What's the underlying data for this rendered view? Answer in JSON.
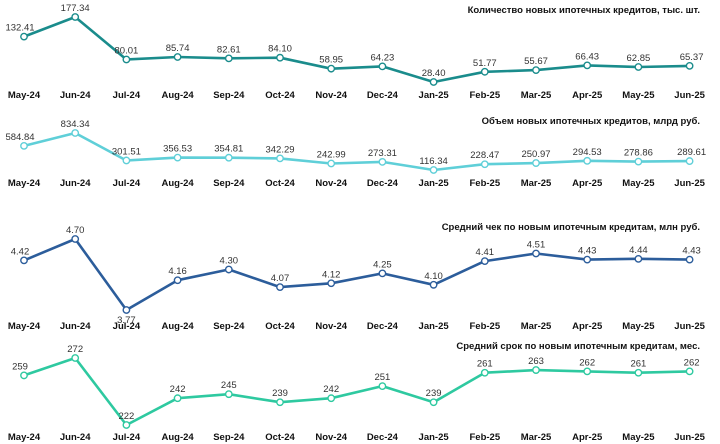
{
  "chart_data": [
    {
      "type": "line",
      "title": "Количество новых ипотечных кредитов, тыс. шт.",
      "categories": [
        "May-24",
        "Jun-24",
        "Jul-24",
        "Aug-24",
        "Sep-24",
        "Oct-24",
        "Nov-24",
        "Dec-24",
        "Jan-25",
        "Feb-25",
        "Mar-25",
        "Apr-25",
        "May-25",
        "Jun-25"
      ],
      "values": [
        132.41,
        177.34,
        80.01,
        85.74,
        82.61,
        84.1,
        58.95,
        64.23,
        28.4,
        51.77,
        55.67,
        66.43,
        62.85,
        65.37
      ],
      "labels": [
        "132.41",
        "177.34",
        "80.01",
        "85.74",
        "82.61",
        "84.10",
        "58.95",
        "64.23",
        "28.40",
        "51.77",
        "55.67",
        "66.43",
        "62.85",
        "65.37"
      ],
      "color": "#1a8c8c"
    },
    {
      "type": "line",
      "title": "Объем новых ипотечных кредитов, млрд руб.",
      "categories": [
        "May-24",
        "Jun-24",
        "Jul-24",
        "Aug-24",
        "Sep-24",
        "Oct-24",
        "Nov-24",
        "Dec-24",
        "Jan-25",
        "Feb-25",
        "Mar-25",
        "Apr-25",
        "May-25",
        "Jun-25"
      ],
      "values": [
        584.84,
        834.34,
        301.51,
        356.53,
        354.81,
        342.29,
        242.99,
        273.31,
        116.34,
        228.47,
        250.97,
        294.53,
        278.86,
        289.61
      ],
      "labels": [
        "584.84",
        "834.34",
        "301.51",
        "356.53",
        "354.81",
        "342.29",
        "242.99",
        "273.31",
        "116.34",
        "228.47",
        "250.97",
        "294.53",
        "278.86",
        "289.61"
      ],
      "color": "#5fcfd8"
    },
    {
      "type": "line",
      "title": "Средний чек по новым ипотечным кредитам, млн руб.",
      "categories": [
        "May-24",
        "Jun-24",
        "Jul-24",
        "Aug-24",
        "Sep-24",
        "Oct-24",
        "Nov-24",
        "Dec-24",
        "Jan-25",
        "Feb-25",
        "Mar-25",
        "Apr-25",
        "May-25",
        "Jun-25"
      ],
      "values": [
        4.42,
        4.7,
        3.77,
        4.16,
        4.3,
        4.07,
        4.12,
        4.25,
        4.1,
        4.41,
        4.51,
        4.43,
        4.44,
        4.43
      ],
      "labels": [
        "4.42",
        "4.70",
        "3.77",
        "4.16",
        "4.30",
        "4.07",
        "4.12",
        "4.25",
        "4.10",
        "4.41",
        "4.51",
        "4.43",
        "4.44",
        "4.43"
      ],
      "color": "#2c5d9b"
    },
    {
      "type": "line",
      "title": "Средний срок по новым ипотечным кредитам, мес.",
      "categories": [
        "May-24",
        "Jun-24",
        "Jul-24",
        "Aug-24",
        "Sep-24",
        "Oct-24",
        "Nov-24",
        "Dec-24",
        "Jan-25",
        "Feb-25",
        "Mar-25",
        "Apr-25",
        "May-25",
        "Jun-25"
      ],
      "values": [
        259,
        272,
        222,
        242,
        245,
        239,
        242,
        251,
        239,
        261,
        263,
        262,
        261,
        262
      ],
      "labels": [
        "259",
        "272",
        "222",
        "242",
        "245",
        "239",
        "242",
        "251",
        "239",
        "261",
        "263",
        "262",
        "261",
        "262"
      ],
      "color": "#2ec9a0"
    }
  ]
}
